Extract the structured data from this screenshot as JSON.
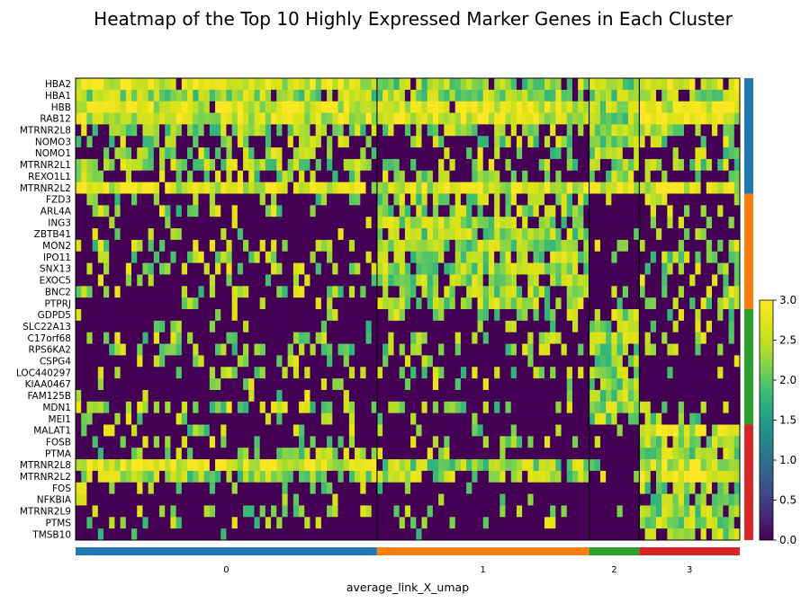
{
  "chart_data": {
    "type": "heatmap",
    "title": "Heatmap of the Top 10 Highly Expressed Marker Genes in Each Cluster",
    "xlabel": "average_link_X_umap",
    "ylabel": "",
    "colormap": "viridis",
    "vmin": 0,
    "vmax": 3,
    "colorbar_ticks": [
      "0.0",
      "0.5",
      "1.0",
      "1.5",
      "2.0",
      "2.5",
      "3.0"
    ],
    "genes": [
      "HBA2",
      "HBA1",
      "HBB",
      "RAB12",
      "MTRNR2L8",
      "NOMO3",
      "NOMO1",
      "MTRNR2L1",
      "REXO1L1",
      "MTRNR2L2",
      "FZD3",
      "ARL4A",
      "ING3",
      "ZBTB41",
      "MON2",
      "IPO11",
      "SNX13",
      "EXOC5",
      "BNC2",
      "PTPRJ",
      "GDPD5",
      "SLC22A13",
      "C17orf68",
      "RPS6KA2",
      "CSPG4",
      "LOC440297",
      "KIAA0467",
      "FAM125B",
      "MDN1",
      "MEI1",
      "MALAT1",
      "FOSB",
      "PTMA",
      "MTRNR2L8",
      "MTRNR2L2",
      "FOS",
      "NFKBIA",
      "MTRNR2L9",
      "PTMS",
      "TMSB10"
    ],
    "clusters": [
      {
        "label": "0",
        "cells": 54,
        "color": "#1f77b4",
        "marker_genes": 10
      },
      {
        "label": "1",
        "cells": 38,
        "color": "#ff7f0e",
        "marker_genes": 10
      },
      {
        "label": "2",
        "cells": 9,
        "color": "#2ca02c",
        "marker_genes": 10
      },
      {
        "label": "3",
        "cells": 18,
        "color": "#d62728",
        "marker_genes": 10
      }
    ],
    "mean_expression": [
      [
        2.5,
        2.2,
        2.3,
        2.5
      ],
      [
        2.4,
        2.3,
        2.3,
        2.4
      ],
      [
        2.5,
        2.5,
        2.3,
        2.5
      ],
      [
        2.8,
        2.7,
        2.3,
        2.6
      ],
      [
        1.8,
        1.4,
        2.2,
        2.0
      ],
      [
        1.0,
        0.7,
        2.2,
        1.0
      ],
      [
        1.3,
        0.8,
        2.2,
        1.0
      ],
      [
        1.8,
        1.1,
        2.2,
        1.6
      ],
      [
        1.2,
        1.0,
        2.1,
        0.9
      ],
      [
        2.6,
        2.7,
        2.5,
        2.8
      ],
      [
        0.7,
        1.8,
        0.3,
        0.6
      ],
      [
        0.6,
        1.9,
        0.2,
        0.5
      ],
      [
        0.5,
        2.0,
        0.2,
        0.7
      ],
      [
        0.5,
        2.1,
        0.1,
        0.5
      ],
      [
        1.1,
        2.1,
        0.6,
        1.2
      ],
      [
        1.0,
        2.0,
        0.3,
        1.0
      ],
      [
        0.8,
        2.2,
        0.2,
        0.9
      ],
      [
        0.7,
        2.0,
        0.2,
        0.7
      ],
      [
        0.9,
        2.0,
        0.4,
        1.0
      ],
      [
        0.5,
        2.1,
        0.3,
        1.5
      ],
      [
        0.2,
        0.6,
        2.2,
        0.3
      ],
      [
        0.5,
        0.4,
        2.2,
        0.4
      ],
      [
        0.6,
        0.7,
        2.2,
        0.3
      ],
      [
        1.0,
        0.9,
        2.2,
        0.6
      ],
      [
        0.5,
        0.5,
        2.1,
        0.2
      ],
      [
        0.9,
        0.9,
        2.2,
        0.3
      ],
      [
        0.3,
        0.3,
        2.2,
        0.1
      ],
      [
        0.2,
        0.1,
        2.1,
        0.1
      ],
      [
        1.4,
        1.0,
        2.3,
        1.0
      ],
      [
        0.5,
        0.3,
        2.2,
        0.5
      ],
      [
        0.5,
        0.3,
        0.2,
        2.7
      ],
      [
        0.6,
        0.3,
        0.2,
        2.4
      ],
      [
        0.9,
        0.6,
        0.1,
        2.3
      ],
      [
        2.5,
        2.3,
        0.3,
        2.8
      ],
      [
        2.0,
        1.9,
        0.3,
        2.7
      ],
      [
        0.4,
        0.3,
        0.1,
        2.0
      ],
      [
        0.3,
        0.2,
        0.1,
        2.1
      ],
      [
        0.6,
        0.3,
        0.1,
        2.2
      ],
      [
        0.5,
        0.3,
        0.1,
        1.9
      ],
      [
        0.3,
        0.2,
        0.1,
        2.0
      ]
    ]
  }
}
